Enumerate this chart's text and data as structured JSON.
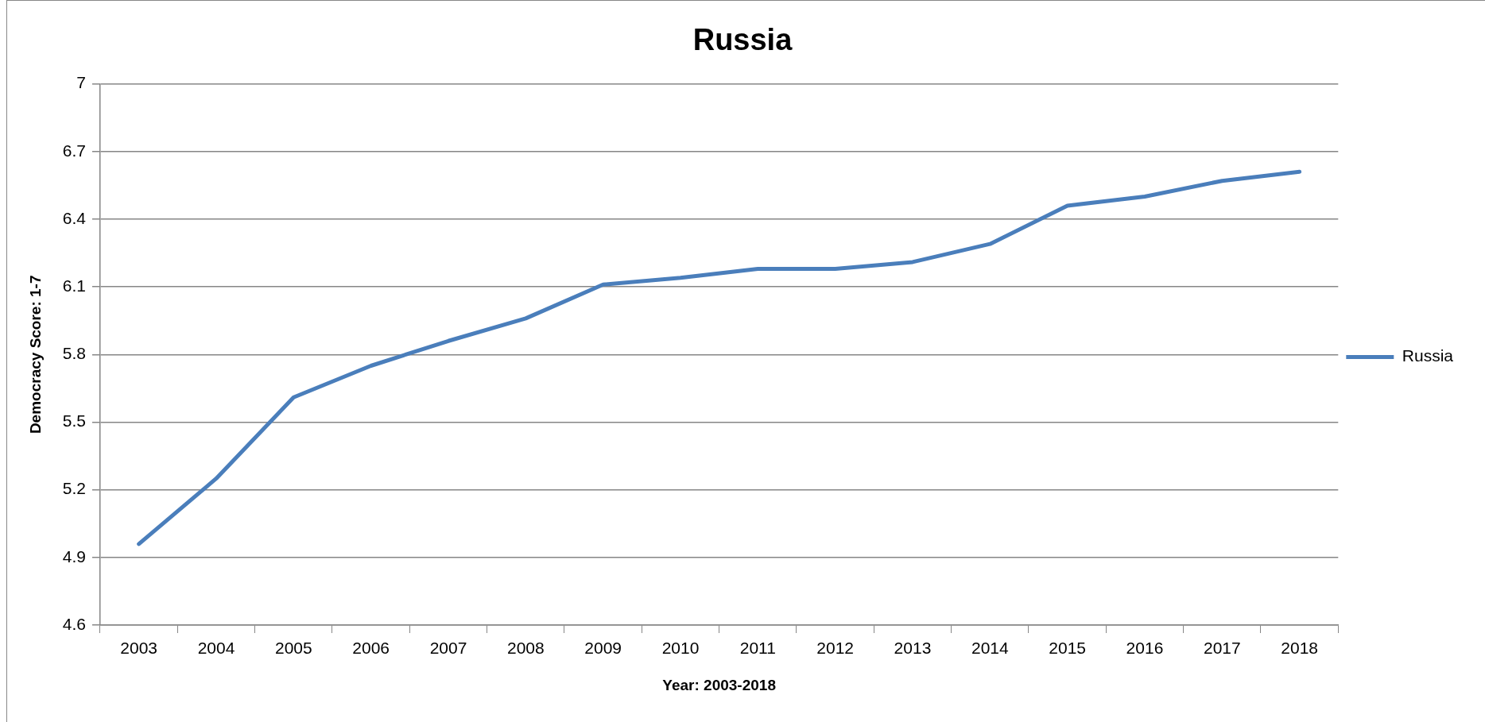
{
  "chart_data": {
    "type": "line",
    "title": "Russia",
    "xlabel": "Year: 2003-2018",
    "ylabel": "Democracy Score: 1-7",
    "categories": [
      "2003",
      "2004",
      "2005",
      "2006",
      "2007",
      "2008",
      "2009",
      "2010",
      "2011",
      "2012",
      "2013",
      "2014",
      "2015",
      "2016",
      "2017",
      "2018"
    ],
    "series": [
      {
        "name": "Russia",
        "color": "#4a7ebb",
        "values": [
          4.96,
          5.25,
          5.61,
          5.75,
          5.86,
          5.96,
          6.11,
          6.14,
          6.18,
          6.18,
          6.21,
          6.29,
          6.46,
          6.5,
          6.57,
          6.61
        ]
      }
    ],
    "ylim": [
      4.6,
      7
    ],
    "yticks": [
      4.6,
      4.9,
      5.2,
      5.5,
      5.8,
      6.1,
      6.4,
      6.7,
      7
    ],
    "grid": "y",
    "legend": "right",
    "marker": "none",
    "line_style": "solid"
  }
}
